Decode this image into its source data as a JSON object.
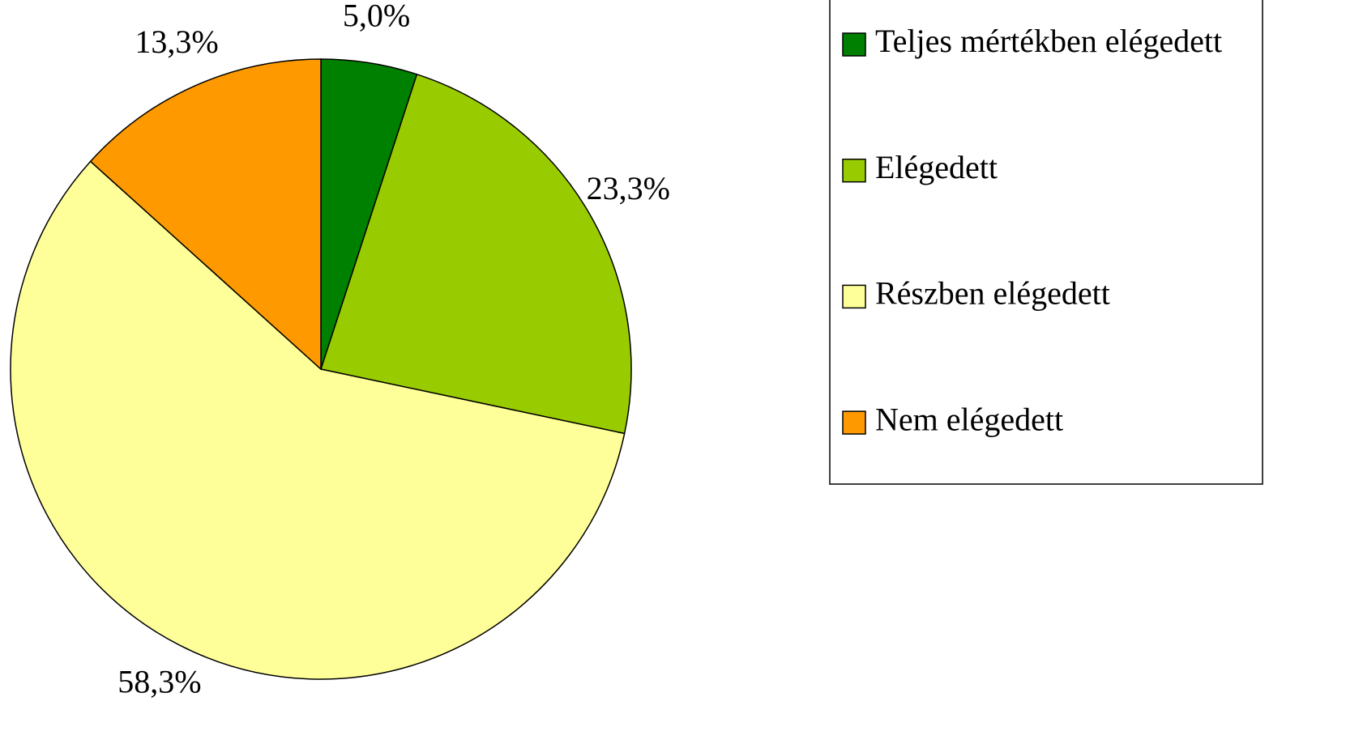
{
  "chart_data": {
    "type": "pie",
    "categories": [
      "Teljes mértékben elégedett",
      "Elégedett",
      "Részben elégedett",
      "Nem elégedett"
    ],
    "values": [
      5.0,
      23.3,
      58.3,
      13.3
    ],
    "value_labels": [
      "5,0%",
      "23,3%",
      "58,3%",
      "13,3%"
    ],
    "colors": [
      "#008000",
      "#99cc00",
      "#ffff99",
      "#ff9900"
    ],
    "legend": "right"
  }
}
